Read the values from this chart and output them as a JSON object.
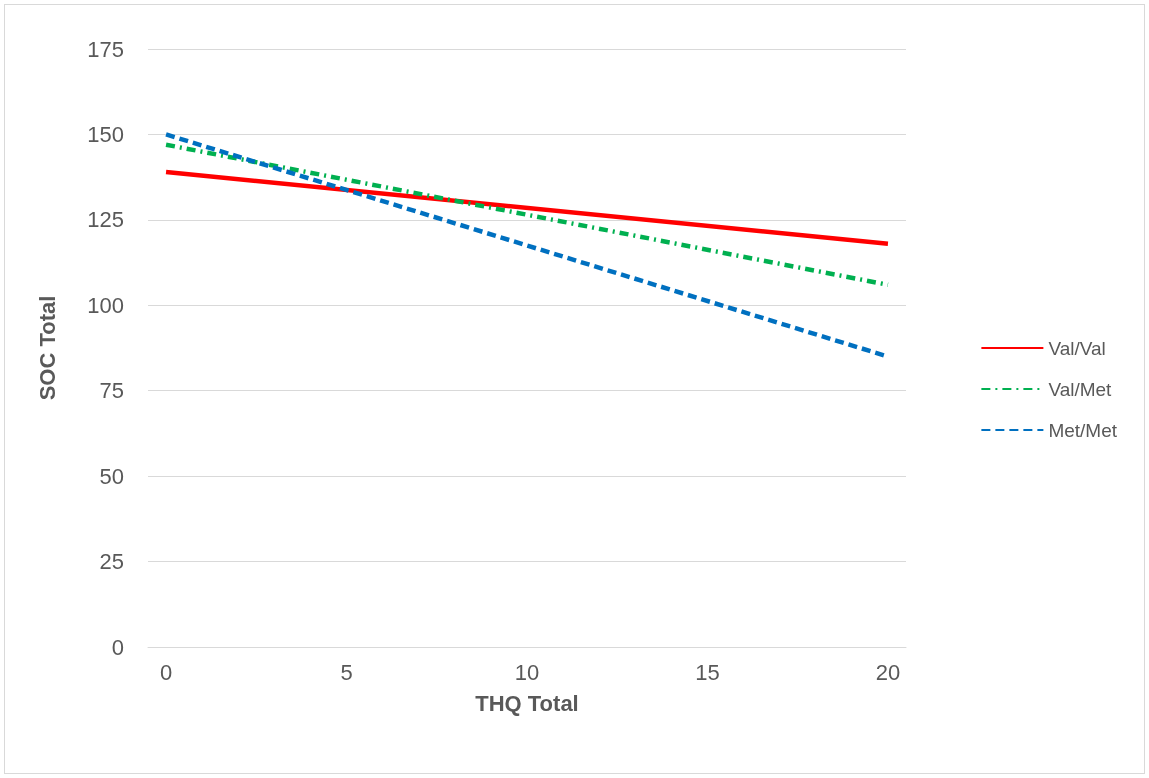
{
  "chart_data": {
    "type": "line",
    "xlabel": "THQ Total",
    "ylabel": "SOC Total",
    "xlim": [
      -0.5,
      20.5
    ],
    "xticks": [
      0,
      5,
      10,
      15,
      20
    ],
    "ylim": [
      0,
      175
    ],
    "yticks": [
      0,
      25,
      50,
      75,
      100,
      125,
      150,
      175
    ],
    "grid": "y",
    "legend": "right",
    "marker": "none",
    "x": [
      0,
      20
    ],
    "series": [
      {
        "name": "Val/Val",
        "color": "#ff0000",
        "values": [
          139,
          118
        ],
        "line_style": "solid"
      },
      {
        "name": "Val/Met",
        "color": "#00b050",
        "values": [
          147,
          106
        ],
        "line_style": "dashdot"
      },
      {
        "name": "Met/Met",
        "color": "#0070c0",
        "values": [
          150,
          85
        ],
        "line_style": "dashed"
      }
    ]
  }
}
